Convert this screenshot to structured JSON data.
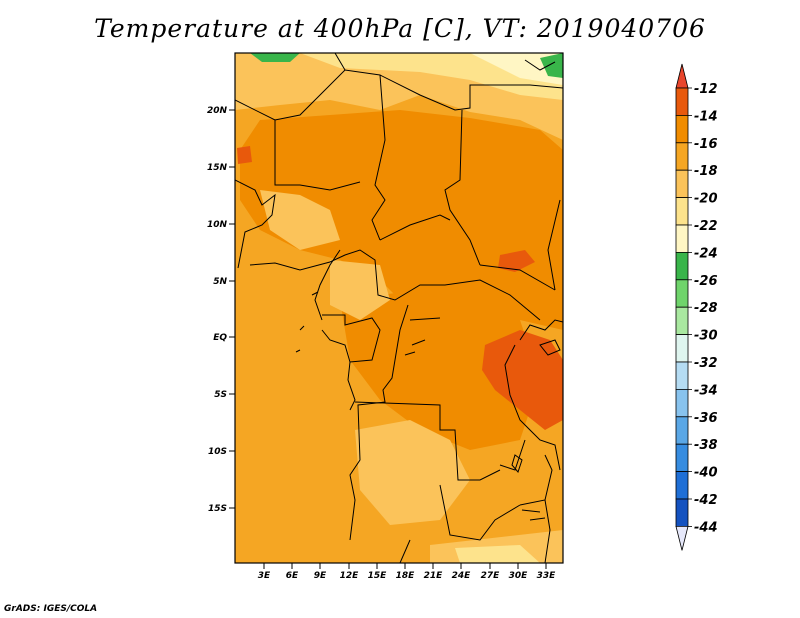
{
  "title": "Temperature at 400hPa [C], VT: 2019040706",
  "credit": "GrADS: IGES/COLA",
  "map": {
    "lon_ticks": [
      "3E",
      "6E",
      "9E",
      "12E",
      "15E",
      "18E",
      "21E",
      "24E",
      "27E",
      "30E",
      "33E"
    ],
    "lat_ticks": [
      "20N",
      "15N",
      "10N",
      "5N",
      "EQ",
      "5S",
      "10S",
      "15S"
    ]
  },
  "colorbar": {
    "labels": [
      "-12",
      "-14",
      "-16",
      "-18",
      "-20",
      "-22",
      "-24",
      "-26",
      "-28",
      "-30",
      "-32",
      "-34",
      "-36",
      "-38",
      "-40",
      "-42",
      "-44"
    ],
    "colors": [
      "#e8590c",
      "#f08c00",
      "#f5a623",
      "#fbc35a",
      "#fde38c",
      "#fff6c4",
      "#39b54a",
      "#6fd46b",
      "#a9e8a0",
      "#dff5ef",
      "#b5dcf3",
      "#88c3ee",
      "#5aa7e6",
      "#368ce0",
      "#1f6fd6",
      "#1452c0",
      "#0b1f7a"
    ],
    "top_color": "#e8452c",
    "bottom_color": "#e6e8fa"
  }
}
